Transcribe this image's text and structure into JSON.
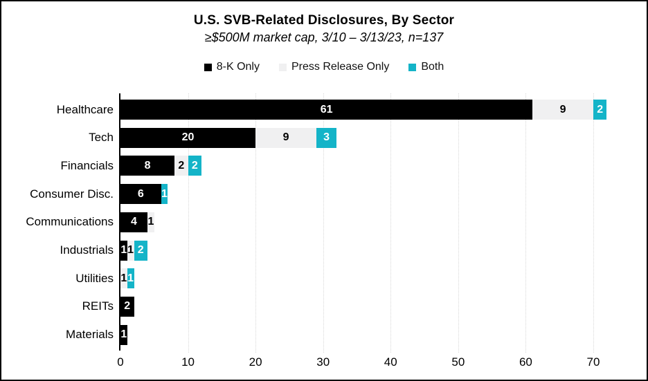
{
  "chart_data": {
    "type": "bar",
    "orientation": "horizontal",
    "stacked": true,
    "title": "U.S. SVB-Related Disclosures, By Sector",
    "subtitle": "≥$500M market cap, 3/10 – 3/13/23, n=137",
    "n_total": 137,
    "categories": [
      "Healthcare",
      "Tech",
      "Financials",
      "Consumer Disc.",
      "Communications",
      "Industrials",
      "Utilities",
      "REITs",
      "Materials"
    ],
    "series": [
      {
        "name": "8-K Only",
        "color": "#000000",
        "label_color": "#ffffff",
        "values": [
          61,
          20,
          8,
          6,
          4,
          1,
          0,
          2,
          1
        ]
      },
      {
        "name": "Press Release Only",
        "color": "#f0f0f1",
        "label_color": "#000000",
        "values": [
          9,
          9,
          2,
          0,
          1,
          1,
          1,
          0,
          0
        ]
      },
      {
        "name": "Both",
        "color": "#14b4c8",
        "label_color": "#ffffff",
        "values": [
          2,
          3,
          2,
          1,
          0,
          2,
          1,
          0,
          0
        ]
      }
    ],
    "xlim": [
      0,
      72
    ],
    "xticks": [
      0,
      10,
      20,
      30,
      40,
      50,
      60,
      70
    ],
    "grid": "dotted-vertical",
    "legend_position": "top-center",
    "axis_color": "#000000",
    "gridline_color": "#d7d7d7"
  }
}
